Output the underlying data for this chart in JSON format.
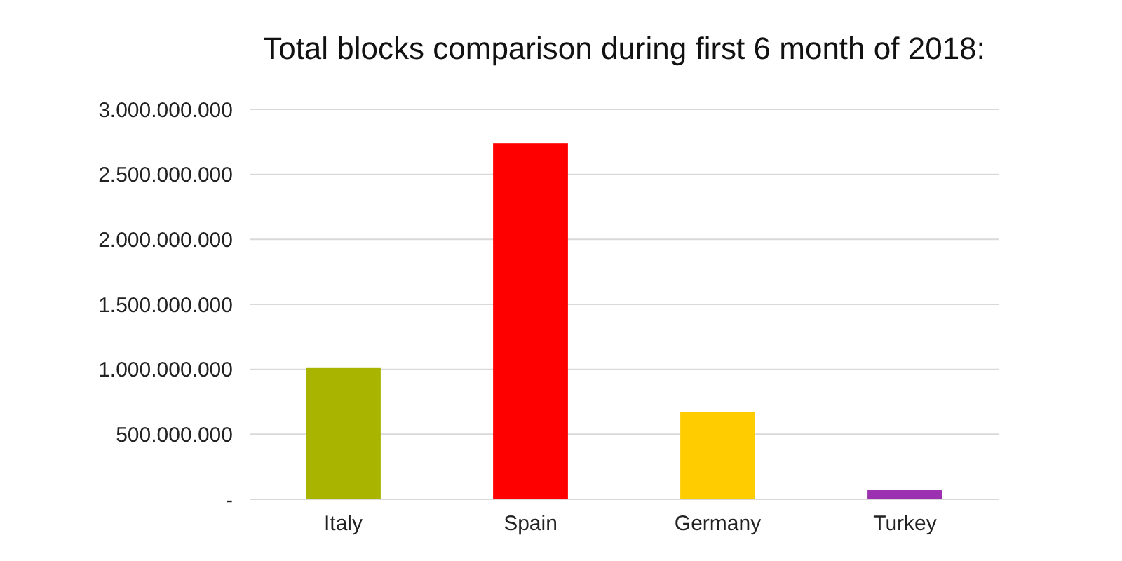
{
  "chart_data": {
    "type": "bar",
    "title": "Total blocks comparison during first 6 month of 2018:",
    "categories": [
      "Italy",
      "Spain",
      "Germany",
      "Turkey"
    ],
    "values": [
      1010000000,
      2740000000,
      670000000,
      70000000
    ],
    "colors": [
      "#a9b400",
      "#ff0000",
      "#ffcc00",
      "#9b30b0"
    ],
    "ylim": [
      0,
      3000000000
    ],
    "yticks": [
      {
        "value": 0,
        "label": "-"
      },
      {
        "value": 500000000,
        "label": "500.000.000"
      },
      {
        "value": 1000000000,
        "label": "1.000.000.000"
      },
      {
        "value": 1500000000,
        "label": "1.500.000.000"
      },
      {
        "value": 2000000000,
        "label": "2.000.000.000"
      },
      {
        "value": 2500000000,
        "label": "2.500.000.000"
      },
      {
        "value": 3000000000,
        "label": "3.000.000.000"
      }
    ],
    "grid": "y"
  }
}
